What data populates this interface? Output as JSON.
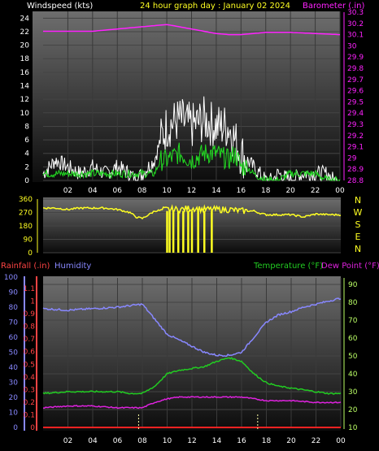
{
  "header": {
    "left_label": "Windspeed (kts)",
    "title": "24 hour graph day : January 02 2024",
    "right_label": "Barometer (.in)"
  },
  "colors": {
    "background": "#000000",
    "plot_top": "#6e6e6e",
    "plot_bottom": "#0c0c0c",
    "wind_avg": "#ffffff",
    "wind_gust": "#22dd22",
    "barometer": "#ff22ff",
    "direction": "#ffff22",
    "humidity": "#8888ff",
    "temperature": "#22cc22",
    "dewpoint": "#dd22dd",
    "rainfall": "#ff2222",
    "temp_axis": "#bbff66",
    "rain_axis": "#ff4444",
    "hum_axis": "#8888ff",
    "marker": "#ffffaa"
  },
  "panel_wind": {
    "x_ticks": [
      "02",
      "04",
      "06",
      "08",
      "10",
      "12",
      "14",
      "16",
      "18",
      "20",
      "22",
      "00"
    ],
    "wind_ticks": [
      "0",
      "2",
      "4",
      "6",
      "8",
      "10",
      "12",
      "14",
      "16",
      "18",
      "20",
      "22",
      "24"
    ],
    "baro_ticks": [
      "28.8",
      "28.9",
      "29",
      "29.1",
      "29.2",
      "29.3",
      "29.4",
      "29.5",
      "29.6",
      "29.7",
      "29.8",
      "29.9",
      "30",
      "30.1",
      "30.2",
      "30.3"
    ]
  },
  "panel_dir": {
    "deg_ticks": [
      "0",
      "90",
      "180",
      "270",
      "360"
    ],
    "compass": [
      "N",
      "W",
      "S",
      "E",
      "N"
    ]
  },
  "panel_temp": {
    "rain_label": "Rainfall (.in)",
    "hum_label": "Humidity",
    "temp_label": "Temperature (°F)",
    "dew_label": "Dew Point (°F)",
    "hum_ticks": [
      "0",
      "10",
      "20",
      "30",
      "40",
      "50",
      "60",
      "70",
      "80",
      "90",
      "100"
    ],
    "rain_ticks": [
      "0",
      "0.1",
      "0.2",
      "0.3",
      "0.4",
      "0.5",
      "0.6",
      "0.7",
      "0.8",
      "0.9",
      "1",
      "1.1"
    ],
    "temp_ticks": [
      "10",
      "20",
      "30",
      "40",
      "50",
      "60",
      "70",
      "80",
      "90"
    ],
    "x_ticks": [
      "02",
      "04",
      "06",
      "08",
      "10",
      "12",
      "14",
      "16",
      "18",
      "20",
      "22",
      "00"
    ]
  },
  "chart_data": [
    {
      "type": "line",
      "title": "24 hour graph day : January 02 2024",
      "series": [
        {
          "name": "Windspeed (kts)",
          "unit": "kts",
          "x_hours": [
            0,
            1,
            2,
            3,
            4,
            5,
            6,
            7,
            7.5,
            8,
            9,
            9.5,
            10,
            11,
            12,
            13,
            14,
            15,
            15.5,
            16,
            16.5,
            17,
            17.5,
            18,
            18.5,
            19,
            20,
            21,
            22,
            23,
            23.5,
            24
          ],
          "values": [
            1,
            3,
            2,
            1,
            2,
            1,
            2,
            1,
            0,
            1,
            3,
            6,
            8,
            9,
            8,
            9,
            8,
            8,
            6,
            4,
            3,
            2,
            1,
            0,
            0,
            1,
            0,
            1,
            1,
            1,
            0,
            0
          ]
        },
        {
          "name": "Gust (kts)",
          "unit": "kts",
          "x_hours": [
            0,
            1,
            2,
            3,
            4,
            5,
            6,
            7,
            8,
            9,
            9.5,
            10,
            11,
            12,
            13,
            14,
            15,
            15.5,
            16,
            16.5,
            17,
            18,
            19,
            20,
            21,
            22,
            23,
            24
          ],
          "values": [
            1,
            1,
            1,
            1,
            1,
            1,
            1,
            1,
            1,
            1,
            3,
            3,
            4,
            3,
            4,
            4,
            3,
            4,
            2,
            2,
            1,
            0,
            0,
            1,
            1,
            1,
            0,
            0
          ]
        },
        {
          "name": "Barometer (.in)",
          "unit": "in",
          "x_hours": [
            0,
            2,
            4,
            6,
            8,
            10,
            10.5,
            12,
            14,
            15,
            16,
            18,
            20,
            22,
            24
          ],
          "values": [
            30.13,
            30.13,
            30.13,
            30.15,
            30.17,
            30.19,
            30.18,
            30.15,
            30.11,
            30.1,
            30.1,
            30.12,
            30.12,
            30.11,
            30.1
          ]
        }
      ],
      "ylim_left": [
        0,
        24
      ],
      "ylim_right": [
        28.8,
        30.3
      ],
      "xlim_hours": [
        0,
        24
      ]
    },
    {
      "type": "scatter",
      "series": [
        {
          "name": "Wind Direction",
          "unit": "deg",
          "x_hours": [
            0,
            1,
            2,
            3,
            4,
            5,
            6,
            7,
            7.5,
            8,
            9,
            10,
            11,
            12,
            13,
            14,
            15,
            16,
            17,
            17.5,
            18,
            19,
            20,
            21,
            22,
            23,
            24
          ],
          "values": [
            300,
            300,
            290,
            300,
            300,
            300,
            290,
            270,
            240,
            230,
            280,
            290,
            290,
            300,
            290,
            290,
            290,
            280,
            280,
            265,
            255,
            255,
            255,
            240,
            260,
            255,
            255
          ]
        }
      ],
      "drops_to_zero_hours": [
        10.0,
        10.2,
        10.5,
        10.9,
        11.3,
        11.7,
        12.0,
        12.5,
        13.0,
        13.6
      ],
      "ylim": [
        0,
        360
      ]
    },
    {
      "type": "line",
      "series": [
        {
          "name": "Humidity",
          "unit": "%",
          "x_hours": [
            0,
            2,
            4,
            6,
            8,
            9,
            10,
            11,
            12,
            13,
            14,
            15,
            16,
            17,
            18,
            19,
            20,
            21,
            22,
            23,
            24
          ],
          "values": [
            79,
            78,
            79,
            80,
            82,
            72,
            62,
            58,
            54,
            50,
            48,
            48,
            50,
            60,
            70,
            75,
            77,
            80,
            82,
            84,
            86
          ]
        },
        {
          "name": "Temperature (°F)",
          "unit": "°F",
          "x_hours": [
            0,
            2,
            4,
            6,
            7,
            8,
            9,
            10,
            11,
            12,
            13,
            14,
            15,
            16,
            17,
            18,
            19,
            20,
            21,
            22,
            23,
            24
          ],
          "values": [
            29,
            30,
            30,
            30,
            29,
            29,
            33,
            40,
            42,
            43,
            44,
            47,
            49,
            47,
            40,
            35,
            33,
            32,
            31,
            30,
            29,
            29
          ]
        },
        {
          "name": "Dew Point (°F)",
          "unit": "°F",
          "x_hours": [
            0,
            2,
            4,
            6,
            7,
            8,
            9,
            10,
            11,
            12,
            14,
            16,
            18,
            20,
            22,
            24
          ],
          "values": [
            21,
            22,
            22,
            21,
            21,
            21,
            24,
            26,
            27,
            27,
            27,
            27,
            25,
            25,
            24,
            24
          ]
        },
        {
          "name": "Rainfall (.in)",
          "unit": "in",
          "x_hours": [
            0,
            24
          ],
          "values": [
            0,
            0
          ]
        }
      ],
      "ylim_temp": [
        10,
        90
      ],
      "ylim_humidity": [
        0,
        100
      ],
      "ylim_rain": [
        0,
        1.1
      ],
      "markers_hours": [
        7.7,
        17.3
      ]
    }
  ]
}
